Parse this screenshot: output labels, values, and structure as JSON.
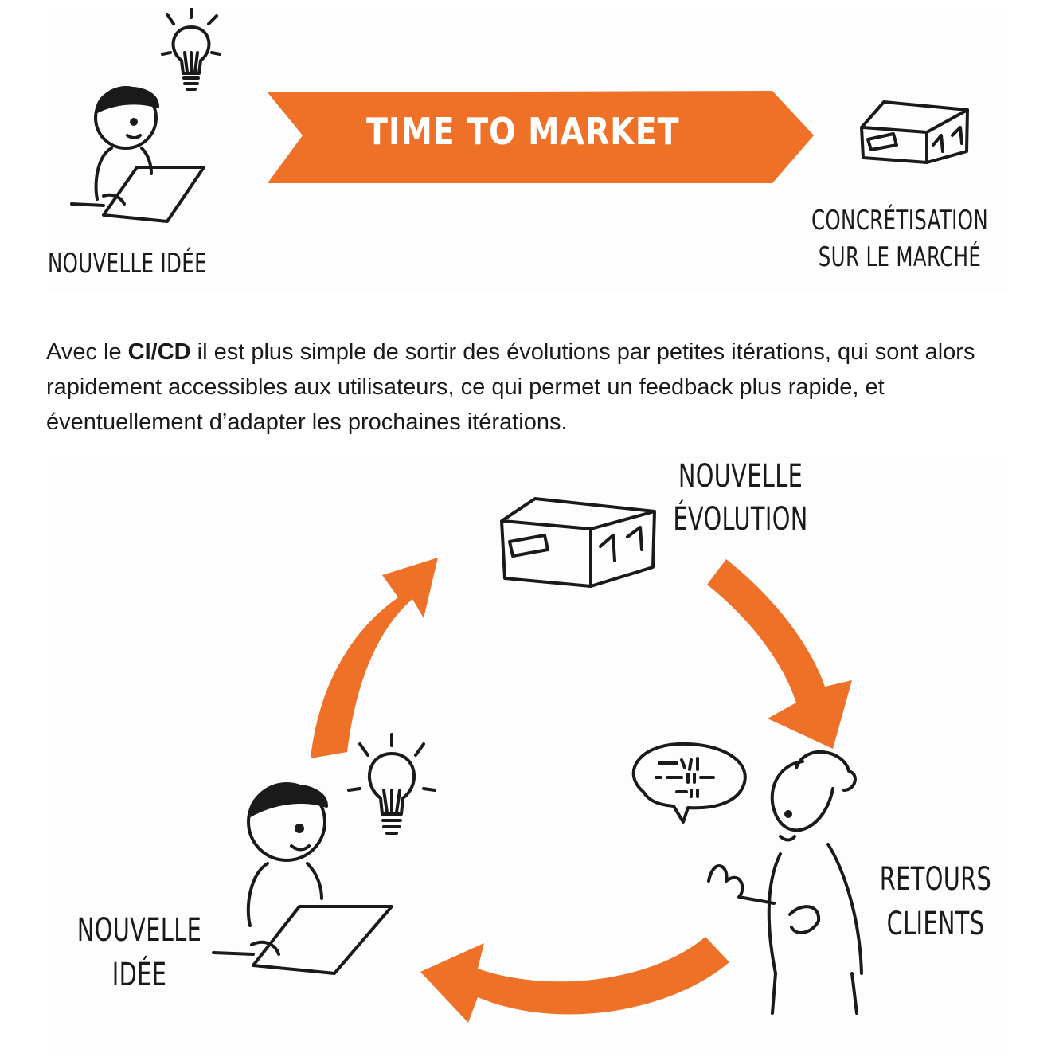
{
  "top_diagram": {
    "banner": "TIME TO MARKET",
    "label_left": "Nouvelle idée",
    "label_right_line1": "Concrétisation",
    "label_right_line2": "sur le marché"
  },
  "paragraph": {
    "before": "Avec le ",
    "bold": "CI/CD",
    "after": " il est plus simple de sortir des évolutions par petites itérations, qui sont alors rapidement accessibles aux utilisateurs, ce qui permet un feedback plus rapide, et éventuellement d’adapter les prochaines itérations."
  },
  "cycle_diagram": {
    "label_top_line1": "Nouvelle",
    "label_top_line2": "Évolution",
    "label_right_line1": "Retours",
    "label_right_line2": "clients",
    "label_left_line1": "Nouvelle",
    "label_left_line2": "idée"
  },
  "colors": {
    "accent_orange": "#ee7127",
    "ink": "#1a1a1a"
  }
}
